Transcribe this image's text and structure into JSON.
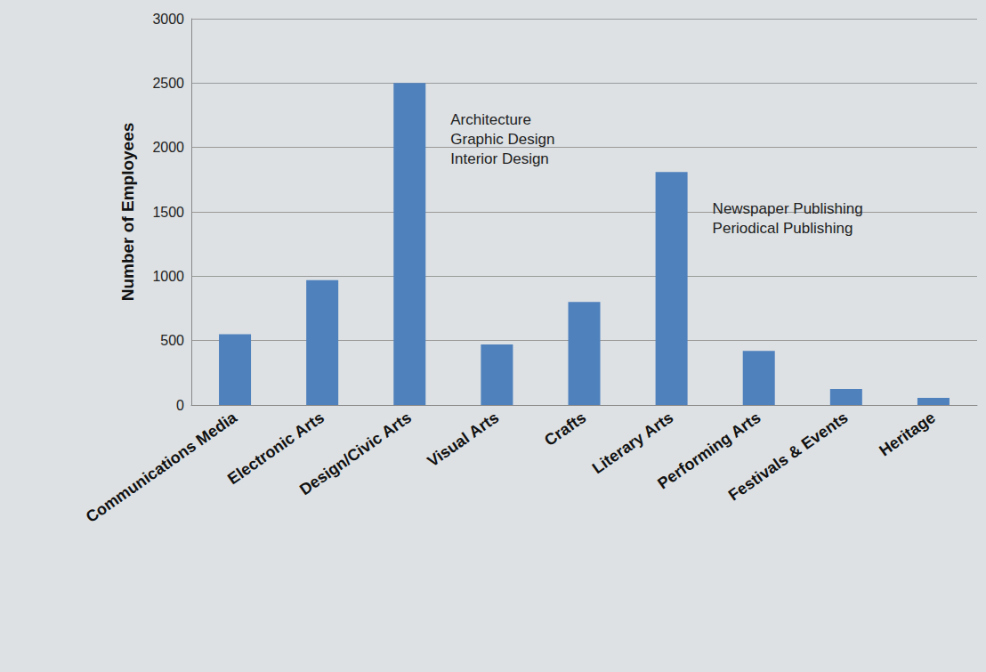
{
  "chart_data": {
    "type": "bar",
    "y_label": "Number of Employees",
    "categories": [
      "Communications Media",
      "Electronic Arts",
      "Design/Civic Arts",
      "Visual Arts",
      "Crafts",
      "Literary Arts",
      "Performing Arts",
      "Festivals & Events",
      "Heritage"
    ],
    "values": [
      550,
      970,
      2500,
      470,
      800,
      1810,
      420,
      125,
      55
    ],
    "color": "#4f81bd",
    "ylim": [
      0,
      3000
    ],
    "yticks": [
      0,
      500,
      1000,
      1500,
      2000,
      2500,
      3000
    ],
    "grid": true,
    "annotations": [
      {
        "category": "Design/Civic Arts",
        "lines": [
          "Architecture",
          "Graphic Design",
          "Interior Design"
        ]
      },
      {
        "category": "Literary Arts",
        "lines": [
          "Newspaper Publishing",
          "Periodical Publishing"
        ]
      }
    ]
  }
}
